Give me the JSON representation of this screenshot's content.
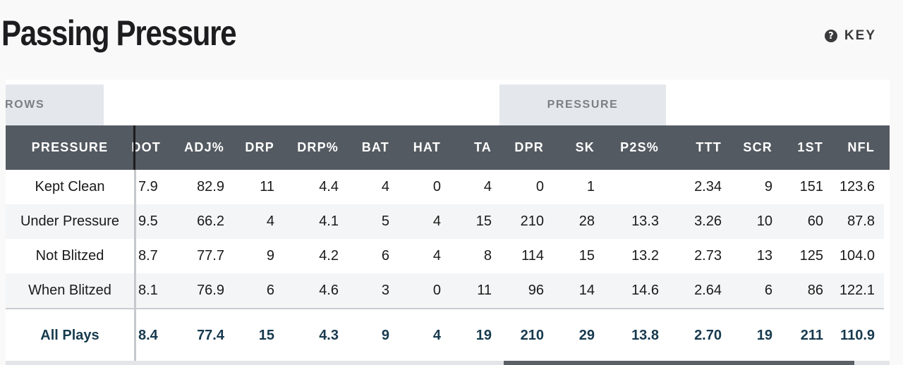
{
  "title": "Passing Pressure",
  "key": {
    "label": "KEY",
    "icon": "question-circle-icon"
  },
  "groups": {
    "throws": "IROWS",
    "pressure": "PRESSURE"
  },
  "columns": [
    "PRESSURE",
    "DOT",
    "ADJ%",
    "DRP",
    "DRP%",
    "BAT",
    "HAT",
    "TA",
    "DPR",
    "SK",
    "P2S%",
    "TTT",
    "SCR",
    "1ST",
    "NFL"
  ],
  "rows": [
    {
      "name": "Kept Clean",
      "values": [
        "7.9",
        "82.9",
        "11",
        "4.4",
        "4",
        "0",
        "4",
        "0",
        "1",
        "",
        "2.34",
        "9",
        "151",
        "123.6"
      ]
    },
    {
      "name": "Under Pressure",
      "values": [
        "9.5",
        "66.2",
        "4",
        "4.1",
        "5",
        "4",
        "15",
        "210",
        "28",
        "13.3",
        "3.26",
        "10",
        "60",
        "87.8"
      ]
    },
    {
      "name": "Not Blitzed",
      "values": [
        "8.7",
        "77.7",
        "9",
        "4.2",
        "6",
        "4",
        "8",
        "114",
        "15",
        "13.2",
        "2.73",
        "13",
        "125",
        "104.0"
      ]
    },
    {
      "name": "When Blitzed",
      "values": [
        "8.1",
        "76.9",
        "6",
        "4.6",
        "3",
        "0",
        "11",
        "96",
        "14",
        "14.6",
        "2.64",
        "6",
        "86",
        "122.1"
      ]
    }
  ],
  "total": {
    "name": "All Plays",
    "values": [
      "8.4",
      "77.4",
      "15",
      "4.3",
      "9",
      "4",
      "19",
      "210",
      "29",
      "13.8",
      "2.70",
      "19",
      "211",
      "110.9"
    ]
  }
}
